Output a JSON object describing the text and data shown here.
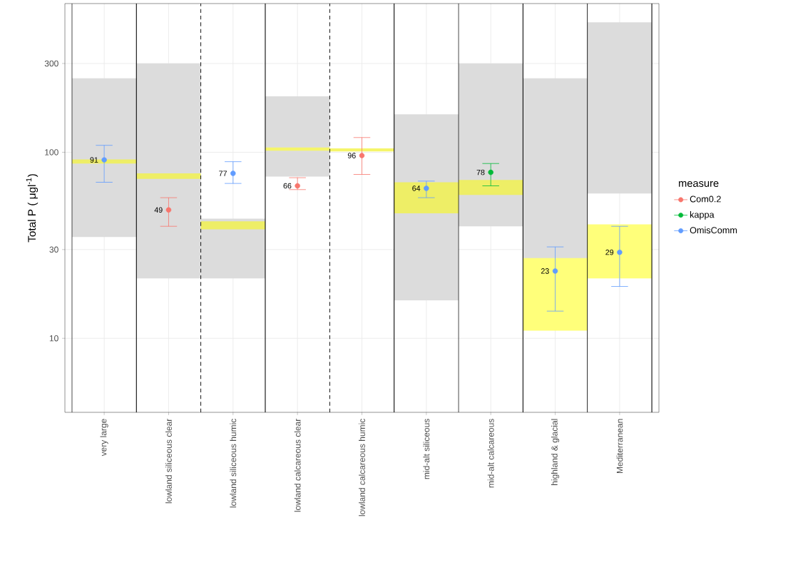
{
  "chart_data": {
    "type": "scatter",
    "ylabel": "Total P ( μgl$^{-1}$)",
    "legend_title": "measure",
    "categories": [
      "very large",
      "lowland siliceous clear",
      "lowland siliceous humic",
      "lowland calcareous clear",
      "lowland calcareous humic",
      "mid-alt siliceous",
      "mid-alt calcareous",
      "highland & glacial",
      "Mediterranean"
    ],
    "log": "y",
    "ylim": [
      4,
      630
    ],
    "yticks": [
      10,
      30,
      100,
      300
    ],
    "grid": true,
    "legend": "right",
    "marker": "circle",
    "series": [
      {
        "type": "bar",
        "color": "#dcdcdc",
        "base": [
          35,
          21,
          21,
          74,
          null,
          16,
          40,
          25,
          60
        ],
        "values": [
          215,
          279,
          23,
          126,
          null,
          144,
          260,
          225,
          440
        ]
      },
      {
        "type": "bar",
        "colors": [
          "#eeee66",
          "#eeee66",
          "#eeee66",
          "#f5f56a",
          "#f5f56a",
          "#eeee66",
          "#eeee66",
          "#ffff7a",
          "#ffff7a"
        ],
        "base": [
          87,
          72,
          38.5,
          102,
          101,
          47,
          59,
          11,
          21
        ],
        "values": [
          4.5,
          5,
          4,
          4,
          4,
          22,
          12,
          16,
          20
        ]
      },
      {
        "name": "Com0.2",
        "color": "#f8766d",
        "values": [
          null,
          49,
          null,
          66,
          96,
          null,
          null,
          null,
          null
        ],
        "value_labels": [
          null,
          "49",
          null,
          "66",
          "96",
          null,
          null,
          null,
          null
        ],
        "errors": [
          null,
          [
            40,
            57
          ],
          null,
          [
            63,
            73
          ],
          [
            76,
            120
          ],
          null,
          null,
          null,
          null
        ]
      },
      {
        "name": "kappa",
        "color": "#00ba38",
        "values": [
          null,
          null,
          null,
          null,
          null,
          null,
          78,
          null,
          null
        ],
        "value_labels": [
          null,
          null,
          null,
          null,
          null,
          null,
          "78",
          null,
          null
        ],
        "errors": [
          null,
          null,
          null,
          null,
          null,
          null,
          [
            66,
            87
          ],
          null,
          null
        ]
      },
      {
        "name": "OmisComm",
        "color": "#619cff",
        "values": [
          91,
          null,
          77,
          null,
          null,
          64,
          null,
          23,
          29
        ],
        "value_labels": [
          "91",
          null,
          "77",
          null,
          null,
          "64",
          null,
          "23",
          "29"
        ],
        "errors": [
          [
            69,
            109
          ],
          null,
          [
            68,
            89
          ],
          null,
          null,
          [
            57,
            70
          ],
          null,
          [
            14,
            31
          ],
          [
            19,
            40
          ]
        ]
      }
    ]
  }
}
